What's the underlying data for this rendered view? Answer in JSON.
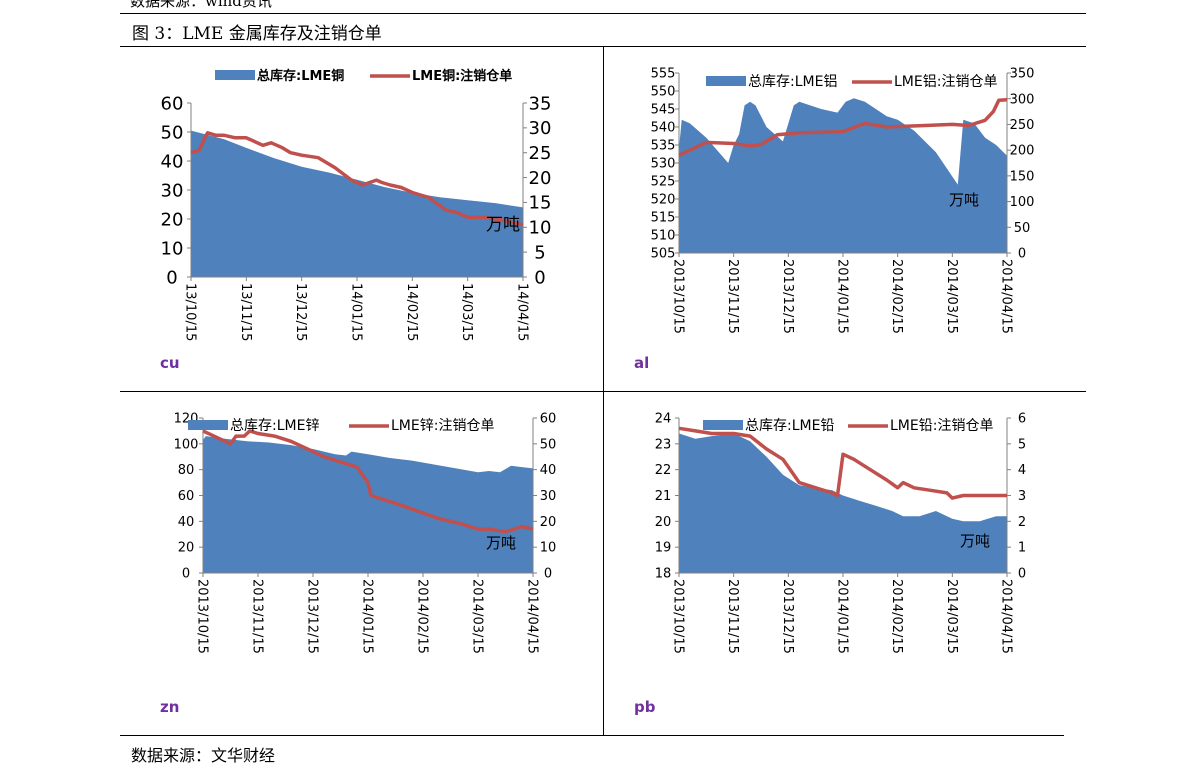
{
  "page": {
    "top_source": "数据来源：wind资讯",
    "figure_title": "图 3：LME 金属库存及注销仓单",
    "bottom_source": "数据来源：文华财经"
  },
  "colors": {
    "area": "#4f81bd",
    "line": "#c0504d"
  },
  "chart_data": [
    {
      "id": "cu",
      "type": "area+line",
      "panel_label": "cu",
      "unit_note": "万吨",
      "legend": [
        "总库存:LME铜",
        "LME铜:注销仓单"
      ],
      "x_labels": [
        "13/10/15",
        "13/11/15",
        "13/12/15",
        "14/01/15",
        "14/02/15",
        "14/03/15",
        "14/04/15"
      ],
      "left_axis": {
        "min": 0,
        "max": 60,
        "step": 10
      },
      "right_axis": {
        "min": 0,
        "max": 35,
        "step": 5
      },
      "series": [
        {
          "name": "总库存:LME铜",
          "axis": "left",
          "type": "area",
          "x": [
            0,
            0.3,
            0.6,
            1,
            1.5,
            2,
            2.5,
            3,
            3.5,
            4,
            4.5,
            5,
            5.5,
            6
          ],
          "values": [
            50.5,
            49,
            47.5,
            44.5,
            41,
            38,
            36,
            33.5,
            31,
            29,
            27.5,
            26.5,
            25.5,
            24
          ]
        },
        {
          "name": "LME铜:注销仓单",
          "axis": "right",
          "type": "line",
          "x": [
            0,
            0.15,
            0.25,
            0.3,
            0.45,
            0.6,
            0.8,
            1,
            1.3,
            1.45,
            1.65,
            1.8,
            2,
            2.3,
            2.6,
            2.9,
            3.1,
            3.35,
            3.45,
            3.6,
            3.8,
            4,
            4.3,
            4.6,
            4.8,
            5,
            5.3,
            5.6,
            6
          ],
          "values": [
            25,
            25.5,
            28,
            29,
            28.5,
            28.5,
            28,
            28,
            26.5,
            27,
            26,
            25,
            24.5,
            24,
            22,
            19.5,
            18.5,
            19.5,
            19,
            18.5,
            18,
            17,
            16,
            13.5,
            13,
            12,
            12,
            11.5,
            10.5
          ]
        }
      ]
    },
    {
      "id": "al",
      "type": "area+line",
      "panel_label": "al",
      "unit_note": "万吨",
      "legend": [
        "总库存:LME铝",
        "LME铝:注销仓单"
      ],
      "x_labels": [
        "2013/10/15",
        "2013/11/15",
        "2013/12/15",
        "2014/01/15",
        "2014/02/15",
        "2014/03/15",
        "2014/04/15"
      ],
      "left_axis": {
        "min": 505,
        "max": 555,
        "step": 5
      },
      "right_axis": {
        "min": 0,
        "max": 350,
        "step": 50
      },
      "series": [
        {
          "name": "总库存:LME铝",
          "axis": "left",
          "type": "area",
          "x": [
            0,
            0.05,
            0.2,
            0.5,
            0.9,
            1.0,
            1.1,
            1.2,
            1.3,
            1.4,
            1.6,
            1.9,
            2.1,
            2.2,
            2.4,
            2.6,
            2.9,
            3.05,
            3.2,
            3.4,
            3.6,
            3.8,
            4.0,
            4.3,
            4.7,
            5.1,
            5.2,
            5.4,
            5.6,
            5.8,
            6
          ],
          "values": [
            534,
            542,
            541,
            537,
            530,
            535,
            538,
            546,
            547,
            546,
            540,
            536,
            546,
            547,
            546,
            545,
            544,
            547,
            548,
            547,
            545,
            543,
            542,
            539,
            533,
            524,
            542,
            541,
            537,
            535,
            532
          ]
        },
        {
          "name": "LME铝:注销仓单",
          "axis": "right",
          "type": "line",
          "x": [
            0,
            0.5,
            1,
            1.3,
            1.5,
            1.8,
            2.2,
            2.7,
            3.0,
            3.4,
            3.8,
            4.5,
            5.0,
            5.3,
            5.6,
            5.75,
            5.85,
            6
          ],
          "values": [
            190,
            215,
            213,
            208,
            211,
            230,
            234,
            235,
            236,
            252,
            245,
            248,
            250,
            248,
            258,
            275,
            297,
            298
          ]
        }
      ]
    },
    {
      "id": "zn",
      "type": "area+line",
      "panel_label": "zn",
      "unit_note": "万吨",
      "legend": [
        "总库存:LME锌",
        "LME锌:注销仓单"
      ],
      "x_labels": [
        "2013/10/15",
        "2013/11/15",
        "2013/12/15",
        "2014/01/15",
        "2014/02/15",
        "2014/03/15",
        "2014/04/15"
      ],
      "left_axis": {
        "min": 0,
        "max": 120,
        "step": 20
      },
      "right_axis": {
        "min": 0,
        "max": 60,
        "step": 10
      },
      "series": [
        {
          "name": "总库存:LME锌",
          "axis": "left",
          "type": "area",
          "x": [
            0,
            0.05,
            0.4,
            0.8,
            1.2,
            1.6,
            2.0,
            2.4,
            2.6,
            2.7,
            3.0,
            3.4,
            3.8,
            4.2,
            4.6,
            5.0,
            5.2,
            5.4,
            5.6,
            5.8,
            6
          ],
          "values": [
            103,
            106,
            104,
            102,
            101,
            99,
            96,
            92,
            91,
            94,
            92,
            89,
            87,
            84,
            81,
            78,
            79,
            78,
            83,
            82,
            81
          ]
        },
        {
          "name": "LME锌:注销仓单",
          "axis": "right",
          "type": "line",
          "x": [
            0,
            0.3,
            0.5,
            0.6,
            0.75,
            0.85,
            1.0,
            1.3,
            1.6,
            1.9,
            2.2,
            2.5,
            2.8,
            3.0,
            3.05,
            3.2,
            3.5,
            3.9,
            4.3,
            4.7,
            5.0,
            5.2,
            5.5,
            5.8,
            6
          ],
          "values": [
            55,
            52,
            50,
            53,
            53,
            55,
            54,
            53,
            51,
            48,
            45,
            43,
            41,
            35,
            30,
            29,
            27,
            24,
            21,
            19,
            17,
            17,
            16,
            18,
            17
          ]
        }
      ]
    },
    {
      "id": "pb",
      "type": "area+line",
      "panel_label": "pb",
      "unit_note": "万吨",
      "legend": [
        "总库存:LME铅",
        "LME铅:注销仓单"
      ],
      "x_labels": [
        "2013/10/15",
        "2013/11/15",
        "2013/12/15",
        "2014/01/15",
        "2014/02/15",
        "2014/03/15",
        "2014/04/15"
      ],
      "left_axis": {
        "min": 18,
        "max": 24,
        "step": 1
      },
      "right_axis": {
        "min": 0,
        "max": 6,
        "step": 1
      },
      "series": [
        {
          "name": "总库存:LME铅",
          "axis": "left",
          "type": "area",
          "x": [
            0,
            0.3,
            0.6,
            1.0,
            1.3,
            1.6,
            1.9,
            2.2,
            2.5,
            2.8,
            3.0,
            3.3,
            3.6,
            3.9,
            4.1,
            4.4,
            4.7,
            5.0,
            5.2,
            5.5,
            5.8,
            6
          ],
          "values": [
            23.4,
            23.2,
            23.3,
            23.4,
            23.1,
            22.5,
            21.8,
            21.4,
            21.3,
            21.2,
            21.0,
            20.8,
            20.6,
            20.4,
            20.2,
            20.2,
            20.4,
            20.1,
            20.0,
            20.0,
            20.2,
            20.2
          ]
        },
        {
          "name": "LME铅:注销仓单",
          "axis": "right",
          "type": "line",
          "x": [
            0,
            0.3,
            0.6,
            1.0,
            1.3,
            1.6,
            1.9,
            2.2,
            2.5,
            2.8,
            2.9,
            3.0,
            3.2,
            3.5,
            3.8,
            4.0,
            4.1,
            4.3,
            4.6,
            4.9,
            5.0,
            5.2,
            5.5,
            6
          ],
          "values": [
            5.6,
            5.5,
            5.4,
            5.4,
            5.3,
            4.8,
            4.4,
            3.5,
            3.3,
            3.1,
            3.0,
            4.6,
            4.4,
            4.0,
            3.6,
            3.3,
            3.5,
            3.3,
            3.2,
            3.1,
            2.9,
            3.0,
            3.0,
            3.0
          ]
        }
      ]
    }
  ]
}
